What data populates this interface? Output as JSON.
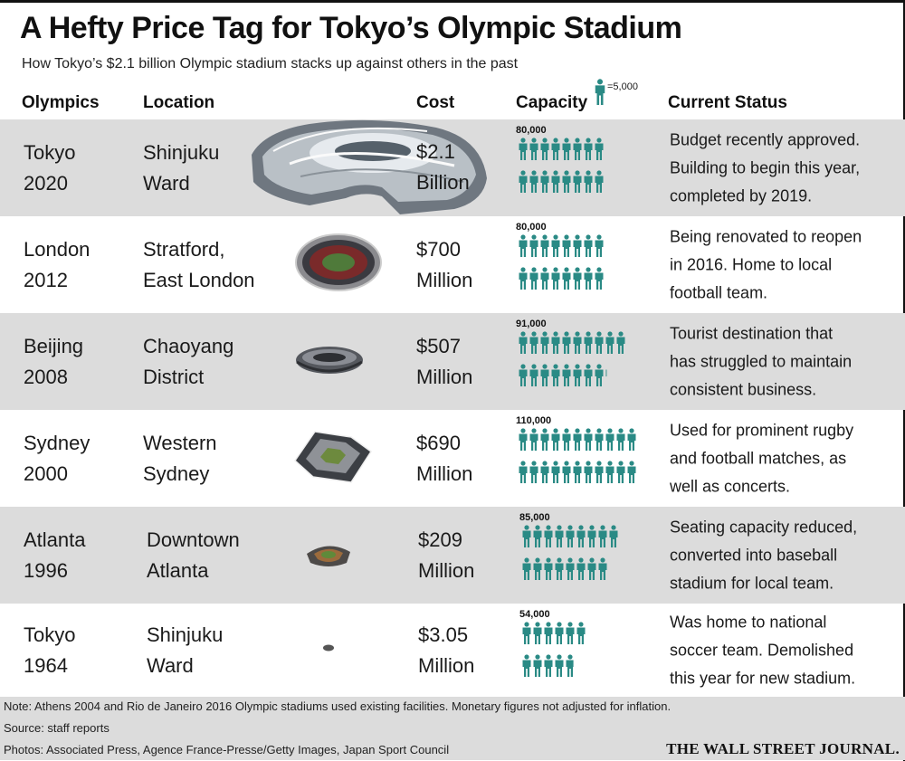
{
  "title": "A Hefty Price Tag for Tokyo’s Olympic Stadium",
  "subtitle": "How Tokyo’s $2.1 billion Olympic stadium stacks up against others in the past",
  "headers": {
    "olympics": "Olympics",
    "location": "Location",
    "cost": "Cost",
    "capacity": "Capacity",
    "status": "Current Status"
  },
  "legend": {
    "label": "=5,000",
    "per_icon": 5000,
    "icon": "person-icon"
  },
  "colors": {
    "icon": "#2a8a85",
    "shade": "#dcdcdc",
    "text": "#1a1a1a"
  },
  "chart_data": {
    "type": "table",
    "columns": [
      "Olympics",
      "Location",
      "Cost",
      "Capacity",
      "Current Status"
    ],
    "rows": [
      {
        "olympics": "Tokyo\n2020",
        "location": "Shinjuku\nWard",
        "cost": "$2.1\nBillion",
        "capacity": 80000,
        "capacity_label": "80,000",
        "status": "Budget recently approved.\nBuilding to begin this year,\ncompleted by 2019.",
        "photo": "tokyo-2020-stadium-rendering"
      },
      {
        "olympics": "London\n2012",
        "location": "Stratford,\nEast London",
        "cost": "$700\nMillion",
        "capacity": 80000,
        "capacity_label": "80,000",
        "status": "Being renovated to reopen\nin 2016. Home to local\nfootball team.",
        "photo": "london-stadium"
      },
      {
        "olympics": "Beijing\n2008",
        "location": "Chaoyang\nDistrict",
        "cost": "$507\nMillion",
        "capacity": 91000,
        "capacity_label": "91,000",
        "status": "Tourist destination that\nhas struggled to maintain\nconsistent business.",
        "photo": "beijing-stadium"
      },
      {
        "olympics": "Sydney\n2000",
        "location": "Western\nSydney",
        "cost": "$690\nMillion",
        "capacity": 110000,
        "capacity_label": "110,000",
        "status": "Used for prominent rugby\nand football matches, as\nwell as concerts.",
        "photo": "sydney-stadium"
      },
      {
        "olympics": "Atlanta\n1996",
        "location": "Downtown\nAtlanta",
        "cost": "$209\nMillion",
        "capacity": 85000,
        "capacity_label": "85,000",
        "status": "Seating capacity reduced,\nconverted into baseball\nstadium for local team.",
        "photo": "atlanta-stadium"
      },
      {
        "olympics": "Tokyo\n1964",
        "location": "Shinjuku\nWard",
        "cost": "$3.05\nMillion",
        "capacity": 54000,
        "capacity_label": "54,000",
        "status": "Was home to national\nsoccer team. Demolished\nthis year for new stadium.",
        "photo": "tokyo-1964-stadium"
      }
    ]
  },
  "footer": {
    "note": "Note: Athens 2004 and Rio de Janeiro 2016 Olympic stadiums used existing facilities. Monetary figures not adjusted for inflation.",
    "source": "Source: staff reports",
    "photos": "Photos: Associated Press, Agence France-Presse/Getty Images, Japan Sport Council",
    "publisher": "THE WALL STREET JOURNAL."
  }
}
